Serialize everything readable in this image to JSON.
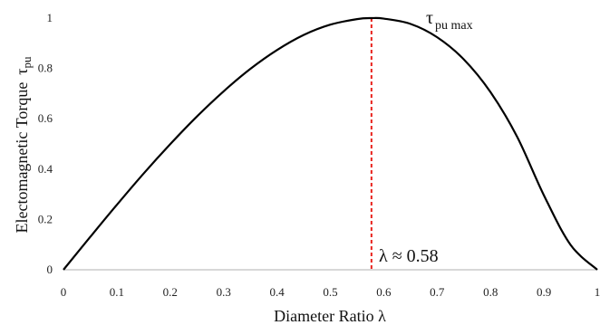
{
  "chart_data": {
    "type": "line",
    "xlabel": "Diameter Ratio λ",
    "ylabel_main": "Electomagnetic Torque",
    "ylabel_symbol": "τ",
    "ylabel_sub": "pu",
    "xlim": [
      0,
      1
    ],
    "ylim": [
      0,
      1
    ],
    "x_ticks": [
      "0",
      "0.1",
      "0.2",
      "0.3",
      "0.4",
      "0.5",
      "0.6",
      "0.7",
      "0.8",
      "0.9",
      "1"
    ],
    "y_ticks": [
      "0",
      "0.2",
      "0.4",
      "0.6",
      "0.8",
      "1"
    ],
    "grid": false,
    "series": [
      {
        "x": [
          0,
          0.05,
          0.1,
          0.15,
          0.2,
          0.25,
          0.3,
          0.35,
          0.4,
          0.45,
          0.5,
          0.55,
          0.577,
          0.6,
          0.65,
          0.7,
          0.75,
          0.8,
          0.85,
          0.9,
          0.95,
          1
        ],
        "values": [
          0,
          0.13,
          0.258,
          0.382,
          0.499,
          0.609,
          0.709,
          0.798,
          0.873,
          0.933,
          0.974,
          0.996,
          1.0,
          0.998,
          0.977,
          0.924,
          0.836,
          0.706,
          0.528,
          0.296,
          0.099,
          0
        ],
        "color": "#000000"
      }
    ],
    "vline": {
      "x": 0.577,
      "color": "#e8231d"
    },
    "annotations": {
      "peak_symbol": "τ",
      "peak_sub": "pu max",
      "lambda_label": "λ ≈ 0.58"
    }
  }
}
